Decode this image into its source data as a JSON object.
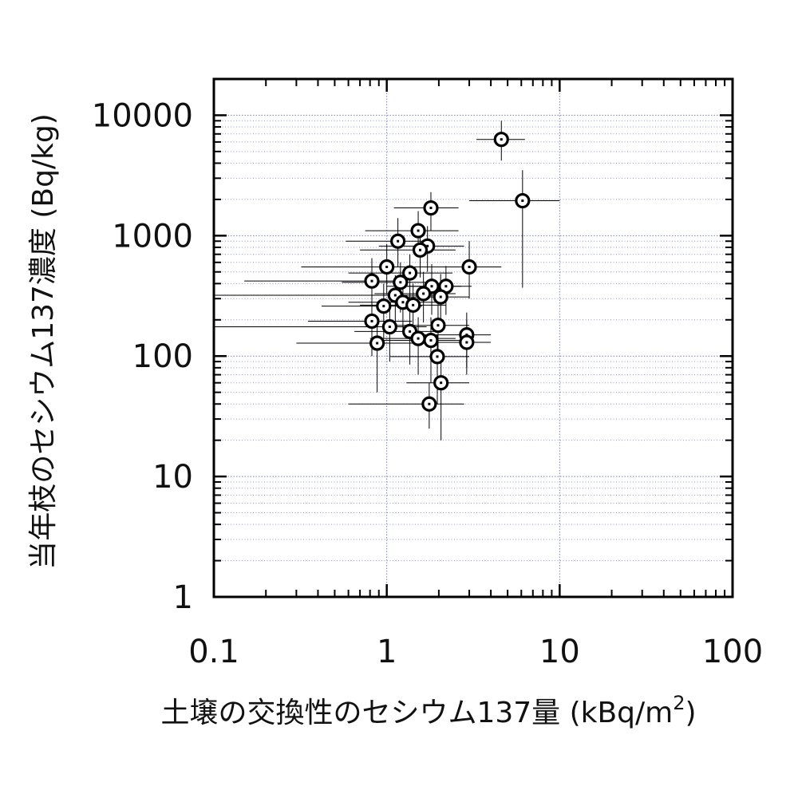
{
  "chart_data": {
    "type": "scatter",
    "xlabel": "土壌の交換性のセシウム137量 (kBq/m",
    "xlabel_sup": "2",
    "xlabel_end": ")",
    "ylabel": "当年枝のセシウム137濃度 (Bq/kg)",
    "x_scale": "log",
    "y_scale": "log",
    "xlim": [
      0.1,
      100
    ],
    "ylim": [
      1,
      20000
    ],
    "x_ticks": [
      0.1,
      1,
      10,
      100
    ],
    "x_tick_labels": [
      "0.1",
      "1",
      "10",
      "100"
    ],
    "y_ticks": [
      1,
      10,
      100,
      1000,
      10000
    ],
    "y_tick_labels": [
      "1",
      "10",
      "100",
      "1000",
      "10000"
    ],
    "grid": true,
    "marker": "circle-with-center-dot",
    "points": [
      {
        "x": 4.6,
        "y": 6300,
        "x_err": [
          3.3,
          6.3
        ],
        "y_err": [
          4200,
          9000
        ]
      },
      {
        "x": 6.1,
        "y": 1950,
        "x_err": [
          3.0,
          10.0
        ],
        "y_err": [
          370,
          3500
        ]
      },
      {
        "x": 1.8,
        "y": 1700,
        "x_err": [
          1.1,
          2.6
        ],
        "y_err": [
          1100,
          2300
        ]
      },
      {
        "x": 1.52,
        "y": 1100,
        "x_err": [
          0.75,
          2.6
        ],
        "y_err": [
          700,
          1600
        ]
      },
      {
        "x": 1.16,
        "y": 900,
        "x_err": [
          0.58,
          1.8
        ],
        "y_err": [
          550,
          1400
        ]
      },
      {
        "x": 1.72,
        "y": 820,
        "x_err": [
          0.9,
          2.8
        ],
        "y_err": [
          500,
          1200
        ]
      },
      {
        "x": 1.56,
        "y": 760,
        "x_err": [
          0.7,
          2.5
        ],
        "y_err": [
          450,
          1150
        ]
      },
      {
        "x": 3.0,
        "y": 550,
        "x_err": [
          1.4,
          4.6
        ],
        "y_err": [
          300,
          900
        ]
      },
      {
        "x": 1.0,
        "y": 550,
        "x_err": [
          0.32,
          1.8
        ],
        "y_err": [
          330,
          850
        ]
      },
      {
        "x": 1.36,
        "y": 490,
        "x_err": [
          0.6,
          2.4
        ],
        "y_err": [
          280,
          700
        ]
      },
      {
        "x": 0.82,
        "y": 420,
        "x_err": [
          0.15,
          1.3
        ],
        "y_err": [
          230,
          650
        ]
      },
      {
        "x": 1.2,
        "y": 410,
        "x_err": [
          0.55,
          1.9
        ],
        "y_err": [
          230,
          600
        ]
      },
      {
        "x": 1.82,
        "y": 380,
        "x_err": [
          1.0,
          2.7
        ],
        "y_err": [
          220,
          580
        ]
      },
      {
        "x": 2.2,
        "y": 380,
        "x_err": [
          1.2,
          3.1
        ],
        "y_err": [
          220,
          560
        ]
      },
      {
        "x": 1.63,
        "y": 330,
        "x_err": [
          0.85,
          2.5
        ],
        "y_err": [
          190,
          500
        ]
      },
      {
        "x": 1.12,
        "y": 320,
        "x_err": [
          0.1,
          2.2
        ],
        "y_err": [
          180,
          470
        ]
      },
      {
        "x": 2.05,
        "y": 310,
        "x_err": [
          1.1,
          3.0
        ],
        "y_err": [
          170,
          480
        ]
      },
      {
        "x": 1.24,
        "y": 280,
        "x_err": [
          0.6,
          2.0
        ],
        "y_err": [
          160,
          420
        ]
      },
      {
        "x": 0.96,
        "y": 260,
        "x_err": [
          0.42,
          1.6
        ],
        "y_err": [
          140,
          400
        ]
      },
      {
        "x": 1.42,
        "y": 265,
        "x_err": [
          0.7,
          2.2
        ],
        "y_err": [
          150,
          400
        ]
      },
      {
        "x": 0.82,
        "y": 195,
        "x_err": [
          0.35,
          1.4
        ],
        "y_err": [
          100,
          300
        ]
      },
      {
        "x": 1.04,
        "y": 175,
        "x_err": [
          0.1,
          1.7
        ],
        "y_err": [
          90,
          270
        ]
      },
      {
        "x": 1.36,
        "y": 160,
        "x_err": [
          0.65,
          2.1
        ],
        "y_err": [
          85,
          250
        ]
      },
      {
        "x": 1.98,
        "y": 180,
        "x_err": [
          1.05,
          3.0
        ],
        "y_err": [
          95,
          270
        ]
      },
      {
        "x": 2.9,
        "y": 150,
        "x_err": [
          1.6,
          4.0
        ],
        "y_err": [
          80,
          230
        ]
      },
      {
        "x": 1.52,
        "y": 140,
        "x_err": [
          0.8,
          2.5
        ],
        "y_err": [
          70,
          210
        ]
      },
      {
        "x": 1.8,
        "y": 135,
        "x_err": [
          0.95,
          2.7
        ],
        "y_err": [
          60,
          210
        ]
      },
      {
        "x": 2.9,
        "y": 130,
        "x_err": [
          1.5,
          4.0
        ],
        "y_err": [
          70,
          200
        ]
      },
      {
        "x": 0.88,
        "y": 128,
        "x_err": [
          0.3,
          1.5
        ],
        "y_err": [
          50,
          200
        ]
      },
      {
        "x": 1.96,
        "y": 99,
        "x_err": [
          1.05,
          3.0
        ],
        "y_err": [
          40,
          150
        ]
      },
      {
        "x": 2.06,
        "y": 60,
        "x_err": [
          1.3,
          3.0
        ],
        "y_err": [
          20,
          100
        ]
      },
      {
        "x": 1.76,
        "y": 40,
        "x_err": [
          0.6,
          2.8
        ],
        "y_err": [
          25,
          60
        ]
      }
    ],
    "colors": {
      "grid": "#7a7fc4",
      "axis": "#000000",
      "marker": "#000000",
      "errorbar": "#000000"
    }
  }
}
